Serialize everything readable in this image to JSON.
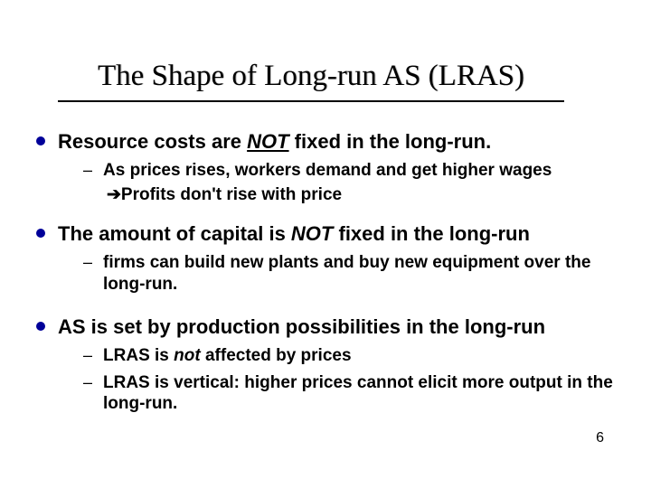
{
  "title": "The Shape of Long-run AS (LRAS)",
  "bullets": {
    "b1": {
      "pre": "Resource costs are ",
      "emph": "NOT",
      "post": " fixed in the long-run.",
      "sub1": "As prices rises, workers demand and get higher wages",
      "arrow": "➔",
      "arrowtext": "Profits don't rise with price"
    },
    "b2": {
      "pre": "The amount of capital is ",
      "emph": "NOT",
      "post": " fixed in the long-run",
      "sub1": "firms can build new plants and buy new equipment over the long-run."
    },
    "b3": {
      "text": "AS is set by production possibilities in the long-run",
      "sub1pre": "LRAS is ",
      "sub1emph": "not",
      "sub1post": " affected by prices",
      "sub2": "LRAS is vertical: higher prices cannot elicit more output in the long-run."
    }
  },
  "page_number": "6"
}
